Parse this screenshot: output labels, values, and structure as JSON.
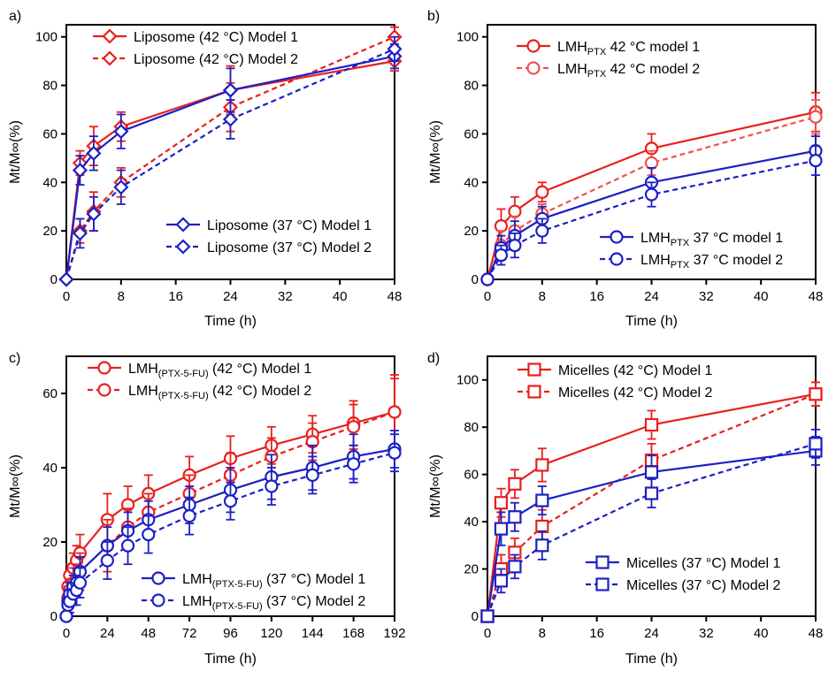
{
  "colors": {
    "red": "#e8201e",
    "light_red": "#f0524e",
    "blue": "#1c20c4",
    "axis": "#000000"
  },
  "chart_data": [
    {
      "panel": "a)",
      "type": "line",
      "xlabel": "Time (h)",
      "ylabel": "Mt/M∞(%)",
      "xlim": [
        0,
        48
      ],
      "ylim": [
        0,
        105
      ],
      "xticks": [
        0,
        8,
        16,
        24,
        32,
        40,
        48
      ],
      "yticks": [
        0,
        20,
        40,
        60,
        80,
        100
      ],
      "legend_upper": "top-left",
      "legend_lower": "bottom-right",
      "series": [
        {
          "name": "Liposome (42 °C) Model 1",
          "name_main": "Liposome (42 °C) Model 1",
          "name_sub": "",
          "name_tail": "",
          "color": "red",
          "dash": false,
          "marker": "diamond",
          "legend": "upper",
          "x": [
            0,
            2,
            4,
            8,
            24,
            48
          ],
          "y": [
            0,
            48,
            55,
            63,
            78,
            90
          ],
          "err": [
            0,
            5,
            8,
            6,
            10,
            4
          ]
        },
        {
          "name": "Liposome (42 °C) Model 2",
          "name_main": "Liposome (42 °C) Model 2",
          "name_sub": "",
          "name_tail": "",
          "color": "red",
          "dash": true,
          "marker": "diamond",
          "legend": "upper",
          "x": [
            0,
            2,
            4,
            8,
            24,
            48
          ],
          "y": [
            0,
            20,
            28,
            40,
            71,
            100
          ],
          "err": [
            0,
            5,
            8,
            6,
            10,
            4
          ]
        },
        {
          "name": "Liposome (37 °C) Model 1",
          "name_main": "Liposome (37 °C) Model 1",
          "name_sub": "",
          "name_tail": "",
          "color": "blue",
          "dash": false,
          "marker": "diamond",
          "legend": "lower",
          "x": [
            0,
            2,
            4,
            8,
            24,
            48
          ],
          "y": [
            0,
            45,
            52,
            61,
            78,
            92
          ],
          "err": [
            0,
            6,
            7,
            7,
            9,
            5
          ]
        },
        {
          "name": "Liposome (37 °C) Model 2",
          "name_main": "Liposome (37 °C) Model 2",
          "name_sub": "",
          "name_tail": "",
          "color": "blue",
          "dash": true,
          "marker": "diamond",
          "legend": "lower",
          "x": [
            0,
            2,
            4,
            8,
            24,
            48
          ],
          "y": [
            0,
            19,
            27,
            38,
            66,
            95
          ],
          "err": [
            0,
            6,
            7,
            7,
            8,
            5
          ]
        }
      ]
    },
    {
      "panel": "b)",
      "type": "line",
      "xlabel": "Time (h)",
      "ylabel": "Mt/M∞(%)",
      "xlim": [
        0,
        48
      ],
      "ylim": [
        0,
        105
      ],
      "xticks": [
        0,
        8,
        16,
        24,
        32,
        40,
        48
      ],
      "yticks": [
        0,
        20,
        40,
        60,
        80,
        100
      ],
      "legend_upper": "top-left",
      "legend_lower": "bottom-right",
      "series": [
        {
          "name": "LMH PTX 42 °C model 1",
          "name_main": "LMH",
          "name_sub": "PTX",
          "name_tail": " 42 °C model 1",
          "color": "red",
          "dash": false,
          "marker": "circle",
          "legend": "upper",
          "x": [
            0,
            2,
            4,
            8,
            24,
            48
          ],
          "y": [
            0,
            22,
            28,
            36,
            54,
            69
          ],
          "err": [
            0,
            7,
            6,
            4,
            6,
            8
          ]
        },
        {
          "name": "LMH PTX 42 °C model 2",
          "name_main": "LMH",
          "name_sub": "PTX",
          "name_tail": " 42 °C model 2",
          "color": "light_red",
          "dash": true,
          "marker": "circle",
          "legend": "upper",
          "x": [
            0,
            2,
            4,
            8,
            24,
            48
          ],
          "y": [
            0,
            14,
            20,
            27,
            48,
            67
          ],
          "err": [
            0,
            6,
            6,
            4,
            5,
            7
          ]
        },
        {
          "name": "LMH PTX 37 °C model 1",
          "name_main": "LMH",
          "name_sub": "PTX",
          "name_tail": " 37 °C model 1",
          "color": "blue",
          "dash": false,
          "marker": "circle",
          "legend": "lower",
          "x": [
            0,
            2,
            4,
            8,
            24,
            48
          ],
          "y": [
            0,
            13,
            18,
            25,
            40,
            53
          ],
          "err": [
            0,
            5,
            6,
            5,
            6,
            6
          ]
        },
        {
          "name": "LMH PTX 37 °C model 2",
          "name_main": "LMH",
          "name_sub": "PTX",
          "name_tail": " 37 °C model 2",
          "color": "blue",
          "dash": true,
          "marker": "circle",
          "legend": "lower",
          "x": [
            0,
            2,
            4,
            8,
            24,
            48
          ],
          "y": [
            0,
            10,
            14,
            20,
            35,
            49
          ],
          "err": [
            0,
            4,
            5,
            5,
            5,
            6
          ]
        }
      ]
    },
    {
      "panel": "c)",
      "type": "line",
      "xlabel": "Time (h)",
      "ylabel": "Mt/M∞(%)",
      "xlim": [
        0,
        192
      ],
      "ylim": [
        0,
        70
      ],
      "xticks": [
        0,
        24,
        48,
        72,
        96,
        120,
        144,
        168,
        192
      ],
      "yticks": [
        0,
        20,
        40,
        60
      ],
      "legend_upper": "top-left",
      "legend_lower": "bottom-right",
      "series": [
        {
          "name": "LMH (PTX-5-FU) (42 °C) Model 1",
          "name_main": "LMH",
          "name_sub": "(PTX-5-FU)",
          "name_tail": " (42 °C) Model 1",
          "color": "red",
          "dash": false,
          "marker": "circle",
          "legend": "upper",
          "x": [
            0,
            1,
            2,
            4,
            6,
            8,
            24,
            36,
            48,
            72,
            96,
            120,
            144,
            168,
            192
          ],
          "y": [
            0,
            8,
            11,
            13,
            15,
            17,
            26,
            30,
            33,
            38,
            42.5,
            46,
            49,
            52,
            55
          ],
          "err": [
            0,
            3,
            3,
            4,
            4,
            5,
            7,
            5,
            5,
            5,
            6,
            5,
            5,
            6,
            10
          ]
        },
        {
          "name": "LMH (PTX-5-FU) (42 °C) Model 2",
          "name_main": "LMH",
          "name_sub": "(PTX-5-FU)",
          "name_tail": " (42 °C) Model 2",
          "color": "red",
          "dash": true,
          "marker": "circle",
          "legend": "upper",
          "x": [
            0,
            1,
            2,
            4,
            6,
            8,
            24,
            36,
            48,
            72,
            96,
            120,
            144,
            168,
            192
          ],
          "y": [
            0,
            5,
            7,
            9,
            10,
            12,
            19,
            24,
            28,
            33,
            38,
            43,
            47,
            51,
            55
          ],
          "err": [
            0,
            3,
            3,
            4,
            4,
            5,
            7,
            5,
            5,
            5,
            6,
            5,
            5,
            6,
            9
          ]
        },
        {
          "name": "LMH (PTX-5-FU) (37 °C) Model 1",
          "name_main": "LMH",
          "name_sub": "(PTX-5-FU)",
          "name_tail": " (37 °C) Model 1",
          "color": "blue",
          "dash": false,
          "marker": "circle",
          "legend": "lower",
          "x": [
            0,
            1,
            2,
            4,
            6,
            8,
            24,
            36,
            48,
            72,
            96,
            120,
            144,
            168,
            192
          ],
          "y": [
            0,
            4,
            6,
            8,
            9,
            12,
            19,
            23,
            26,
            30,
            34,
            37.5,
            40,
            43,
            45
          ],
          "err": [
            0,
            2,
            3,
            3,
            4,
            4,
            5,
            5,
            5,
            5,
            6,
            6,
            6,
            6,
            5
          ]
        },
        {
          "name": "LMH (PTX-5-FU) (37 °C) Model 2",
          "name_main": "LMH",
          "name_sub": "(PTX-5-FU)",
          "name_tail": " (37 °C) Model 2",
          "color": "blue",
          "dash": true,
          "marker": "circle",
          "legend": "lower",
          "x": [
            0,
            1,
            2,
            4,
            6,
            8,
            24,
            36,
            48,
            72,
            96,
            120,
            144,
            168,
            192
          ],
          "y": [
            0,
            3,
            4,
            6,
            7,
            9,
            15,
            19,
            22,
            27,
            31,
            35,
            38,
            41,
            44
          ],
          "err": [
            0,
            2,
            3,
            3,
            4,
            4,
            5,
            5,
            5,
            5,
            5,
            5,
            5,
            5,
            5
          ]
        }
      ]
    },
    {
      "panel": "d)",
      "type": "line",
      "xlabel": "Time (h)",
      "ylabel": "Mt/M∞(%)",
      "xlim": [
        0,
        48
      ],
      "ylim": [
        0,
        110
      ],
      "xticks": [
        0,
        8,
        16,
        24,
        32,
        40,
        48
      ],
      "yticks": [
        0,
        20,
        40,
        60,
        80,
        100
      ],
      "legend_upper": "top-left",
      "legend_lower": "bottom-right",
      "series": [
        {
          "name": "Micelles (42 °C) Model 1",
          "name_main": "Micelles (42 °C) Model 1",
          "name_sub": "",
          "name_tail": "",
          "color": "red",
          "dash": false,
          "marker": "square",
          "legend": "upper",
          "x": [
            0,
            2,
            4,
            8,
            24,
            48
          ],
          "y": [
            0,
            48,
            56,
            64,
            81,
            94
          ],
          "err": [
            0,
            6,
            6,
            7,
            6,
            5
          ]
        },
        {
          "name": "Micelles (42 °C) Model 2",
          "name_main": "Micelles (42 °C) Model 2",
          "name_sub": "",
          "name_tail": "",
          "color": "red",
          "dash": true,
          "marker": "square",
          "legend": "upper",
          "x": [
            0,
            2,
            4,
            8,
            24,
            48
          ],
          "y": [
            0,
            20,
            27,
            38,
            66,
            94
          ],
          "err": [
            0,
            6,
            6,
            7,
            7,
            5
          ]
        },
        {
          "name": "Micelles (37 °C) Model 1",
          "name_main": "Micelles (37 °C) Model 1",
          "name_sub": "",
          "name_tail": "",
          "color": "blue",
          "dash": false,
          "marker": "square",
          "legend": "lower",
          "x": [
            0,
            2,
            4,
            8,
            24,
            48
          ],
          "y": [
            0,
            37,
            42,
            49,
            61,
            70
          ],
          "err": [
            0,
            7,
            6,
            6,
            7,
            6
          ]
        },
        {
          "name": "Micelles (37 °C) Model 2",
          "name_main": "Micelles (37 °C) Model 2",
          "name_sub": "",
          "name_tail": "",
          "color": "blue",
          "dash": true,
          "marker": "square",
          "legend": "lower",
          "x": [
            0,
            2,
            4,
            8,
            24,
            48
          ],
          "y": [
            0,
            15,
            21,
            30,
            52,
            73
          ],
          "err": [
            0,
            5,
            5,
            6,
            6,
            6
          ]
        }
      ]
    }
  ]
}
